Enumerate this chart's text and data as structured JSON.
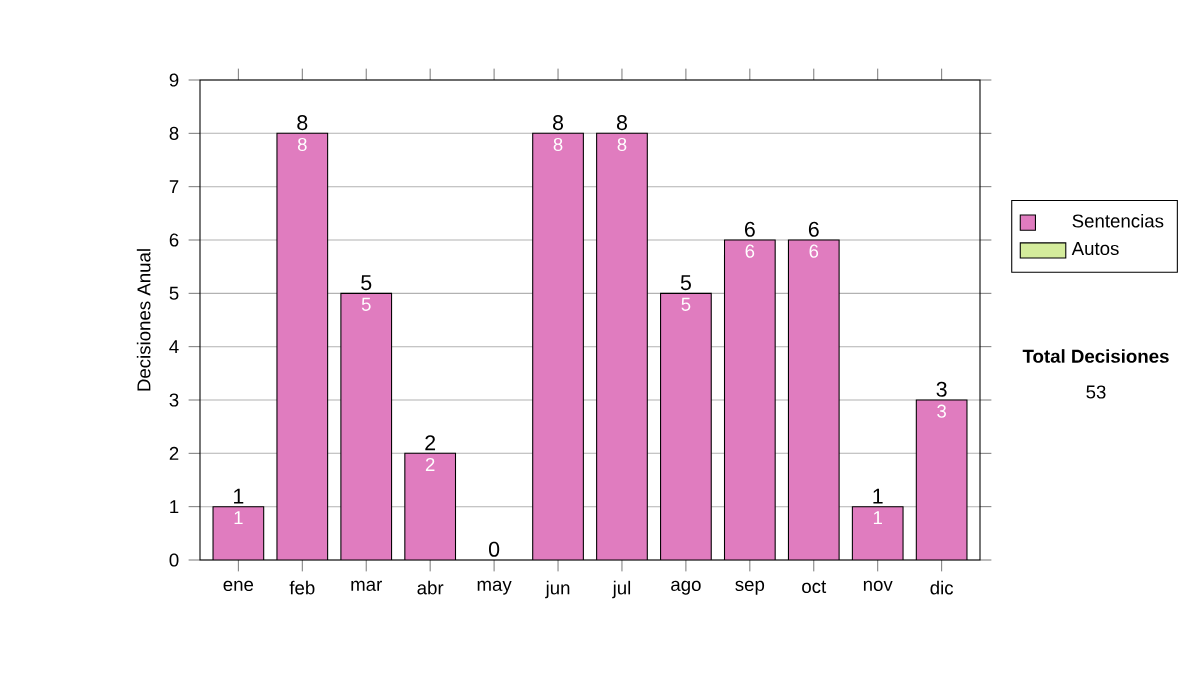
{
  "chart_data": {
    "type": "bar",
    "stacked": true,
    "ylabel": "Decisiones Anual",
    "categories": [
      "ene",
      "feb",
      "mar",
      "abr",
      "may",
      "jun",
      "jul",
      "ago",
      "sep",
      "oct",
      "nov",
      "dic"
    ],
    "series": [
      {
        "name": "Sentencias",
        "color": "#e07cbf",
        "values": [
          1,
          8,
          5,
          2,
          0,
          8,
          8,
          5,
          6,
          6,
          1,
          3
        ],
        "value_labels": [
          "1",
          "8",
          "5",
          "2",
          null,
          "8",
          "8",
          "5",
          "6",
          "6",
          "1",
          "3"
        ]
      },
      {
        "name": "Autos",
        "color": "#d4ec9c",
        "values": [
          null,
          null,
          null,
          null,
          null,
          null,
          null,
          null,
          null,
          null,
          null,
          null
        ]
      }
    ],
    "totals": [
      "1",
      "8",
      "5",
      "2",
      "0",
      "8",
      "8",
      "5",
      "6",
      "6",
      "1",
      "3"
    ],
    "ylim": [
      0,
      9
    ],
    "yticks": [
      0,
      1,
      2,
      3,
      4,
      5,
      6,
      7,
      8,
      9
    ],
    "grid": "y",
    "legend": "right",
    "annotations": [
      "**Total Decisiones**",
      "53"
    ]
  }
}
